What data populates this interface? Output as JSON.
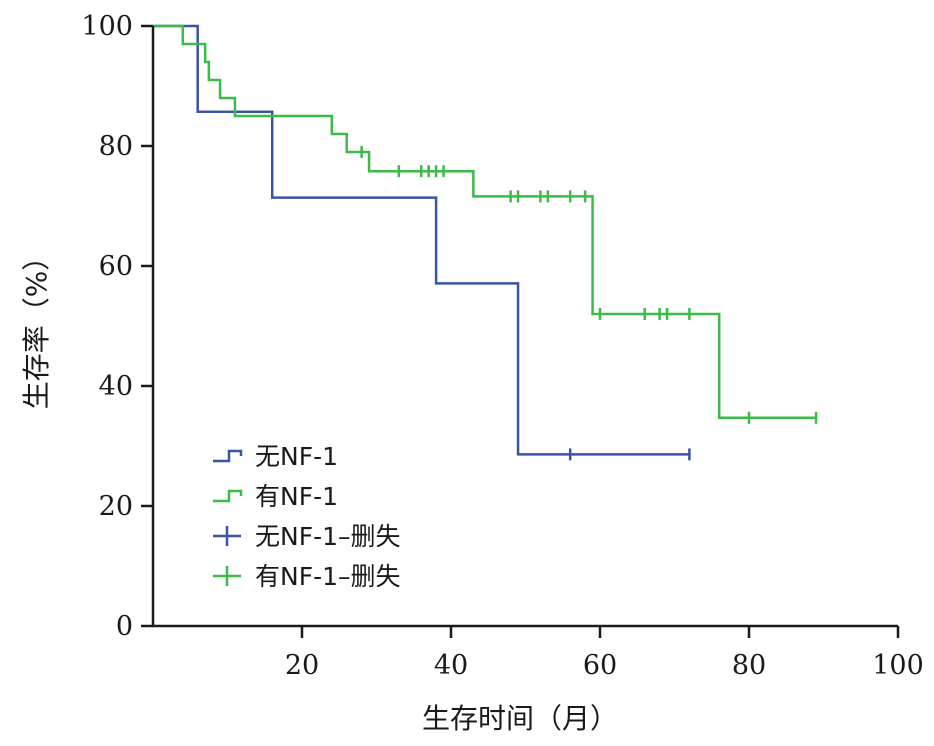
{
  "chart_data": {
    "type": "line",
    "subtype": "kaplan-meier-step",
    "xlabel": "生存时间（月）",
    "ylabel": "生存率（%）",
    "xlim": [
      0,
      100
    ],
    "ylim": [
      0,
      100
    ],
    "x_ticks": [
      20,
      40,
      60,
      80,
      100
    ],
    "y_ticks": [
      0,
      20,
      40,
      60,
      80,
      100
    ],
    "grid": false,
    "legend_position": "bottom-left",
    "legend": [
      {
        "label": "无NF-1",
        "kind": "step",
        "color": "#3a55a4"
      },
      {
        "label": "有NF-1",
        "kind": "step",
        "color": "#3dbb48"
      },
      {
        "label": "无NF-1–删失",
        "kind": "censor",
        "color": "#3a55a4"
      },
      {
        "label": "有NF-1–删失",
        "kind": "censor",
        "color": "#3dbb48"
      }
    ],
    "series": [
      {
        "name": "无NF-1",
        "color": "#3a55a4",
        "steps": [
          [
            0,
            100
          ],
          [
            6,
            85.7
          ],
          [
            16,
            71.4
          ],
          [
            38,
            57.1
          ],
          [
            49,
            28.6
          ]
        ],
        "end_x": 72,
        "censored": [
          [
            56,
            28.6
          ],
          [
            72,
            28.6
          ]
        ]
      },
      {
        "name": "有NF-1",
        "color": "#3dbb48",
        "steps": [
          [
            0,
            100
          ],
          [
            4,
            97
          ],
          [
            7,
            94
          ],
          [
            7.5,
            91
          ],
          [
            9,
            88
          ],
          [
            11,
            85
          ],
          [
            24,
            82
          ],
          [
            26,
            79
          ],
          [
            29,
            75.8
          ],
          [
            43,
            71.6
          ],
          [
            59,
            52
          ],
          [
            76,
            34.7
          ]
        ],
        "end_x": 89,
        "censored": [
          [
            28,
            79
          ],
          [
            33,
            75.8
          ],
          [
            36,
            75.8
          ],
          [
            37,
            75.8
          ],
          [
            38,
            75.8
          ],
          [
            39,
            75.8
          ],
          [
            48,
            71.6
          ],
          [
            49,
            71.6
          ],
          [
            52,
            71.6
          ],
          [
            53,
            71.6
          ],
          [
            56,
            71.6
          ],
          [
            58,
            71.6
          ],
          [
            60,
            52
          ],
          [
            66,
            52
          ],
          [
            68,
            52
          ],
          [
            69,
            52
          ],
          [
            72,
            52
          ],
          [
            80,
            34.7
          ],
          [
            89,
            34.7
          ]
        ]
      }
    ]
  }
}
